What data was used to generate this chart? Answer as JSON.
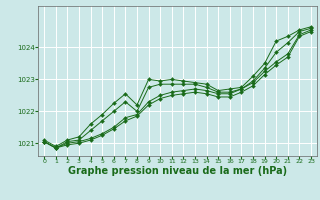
{
  "background_color": "#cce8e8",
  "grid_color": "#ffffff",
  "line_color": "#1a6b1a",
  "xlabel": "Graphe pression niveau de la mer (hPa)",
  "xlabel_fontsize": 7,
  "xlim": [
    -0.5,
    23.5
  ],
  "ylim": [
    1020.6,
    1025.3
  ],
  "yticks": [
    1021,
    1022,
    1023,
    1024
  ],
  "xticks": [
    0,
    1,
    2,
    3,
    4,
    5,
    6,
    7,
    8,
    9,
    10,
    11,
    12,
    13,
    14,
    15,
    16,
    17,
    18,
    19,
    20,
    21,
    22,
    23
  ],
  "series": [
    {
      "x": [
        0,
        1,
        2,
        3,
        4,
        5,
        6,
        7,
        8,
        9,
        10,
        11,
        12,
        13,
        14,
        15,
        16,
        17,
        18,
        19,
        20,
        21,
        22,
        23
      ],
      "y": [
        1021.1,
        1020.9,
        1021.1,
        1021.2,
        1021.6,
        1021.9,
        1022.25,
        1022.55,
        1022.2,
        1023.0,
        1022.95,
        1023.0,
        1022.95,
        1022.9,
        1022.85,
        1022.65,
        1022.7,
        1022.75,
        1023.1,
        1023.5,
        1024.2,
        1024.35,
        1024.55,
        1024.65
      ]
    },
    {
      "x": [
        0,
        1,
        2,
        3,
        4,
        5,
        6,
        7,
        8,
        9,
        10,
        11,
        12,
        13,
        14,
        15,
        16,
        17,
        18,
        19,
        20,
        21,
        22,
        23
      ],
      "y": [
        1021.05,
        1020.85,
        1021.05,
        1021.1,
        1021.4,
        1021.7,
        1022.0,
        1022.3,
        1022.0,
        1022.75,
        1022.85,
        1022.85,
        1022.85,
        1022.85,
        1022.75,
        1022.6,
        1022.6,
        1022.7,
        1022.95,
        1023.35,
        1023.85,
        1024.15,
        1024.5,
        1024.6
      ]
    },
    {
      "x": [
        0,
        1,
        2,
        3,
        4,
        5,
        6,
        7,
        8,
        9,
        10,
        11,
        12,
        13,
        14,
        15,
        16,
        17,
        18,
        19,
        20,
        21,
        22,
        23
      ],
      "y": [
        1021.05,
        1020.85,
        1021.0,
        1021.05,
        1021.15,
        1021.3,
        1021.5,
        1021.8,
        1021.9,
        1022.3,
        1022.5,
        1022.6,
        1022.65,
        1022.7,
        1022.65,
        1022.55,
        1022.55,
        1022.7,
        1022.9,
        1023.25,
        1023.55,
        1023.8,
        1024.4,
        1024.55
      ]
    },
    {
      "x": [
        0,
        1,
        2,
        3,
        4,
        5,
        6,
        7,
        8,
        9,
        10,
        11,
        12,
        13,
        14,
        15,
        16,
        17,
        18,
        19,
        20,
        21,
        22,
        23
      ],
      "y": [
        1021.05,
        1020.85,
        1020.95,
        1021.0,
        1021.1,
        1021.25,
        1021.45,
        1021.7,
        1021.85,
        1022.2,
        1022.4,
        1022.5,
        1022.55,
        1022.6,
        1022.55,
        1022.45,
        1022.45,
        1022.6,
        1022.8,
        1023.15,
        1023.45,
        1023.7,
        1024.35,
        1024.5
      ]
    }
  ]
}
